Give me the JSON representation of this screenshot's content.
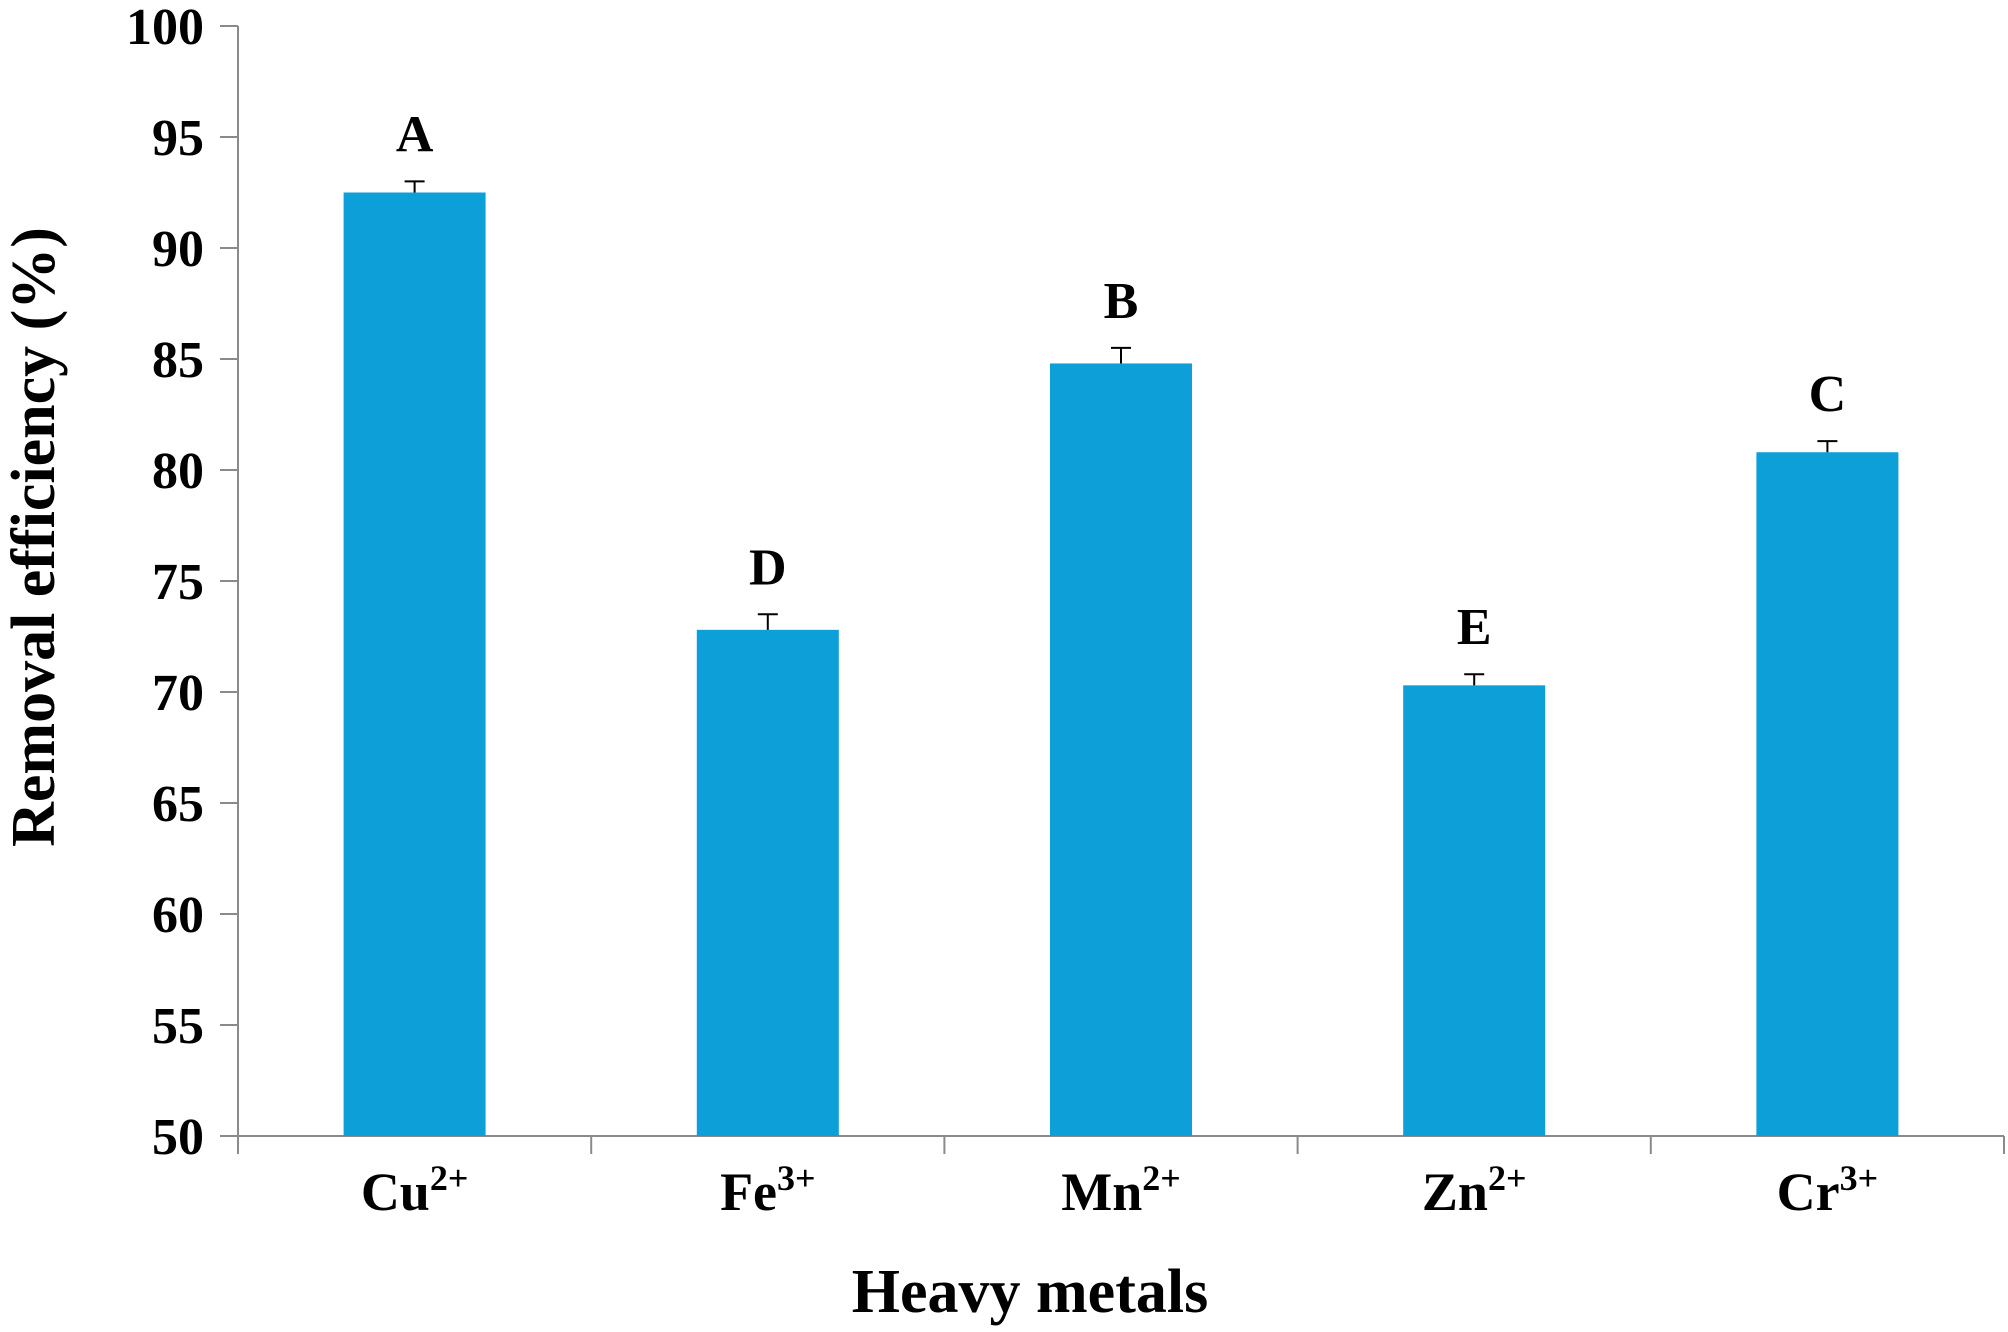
{
  "chart_data": {
    "type": "bar",
    "title": "",
    "xlabel": "Heavy metals",
    "ylabel": "Removal efficiency (%)",
    "ylim": [
      50,
      100
    ],
    "yticks": [
      50,
      55,
      60,
      65,
      70,
      75,
      80,
      85,
      90,
      95,
      100
    ],
    "grid": false,
    "legend": "none",
    "bar_color": "#0c9fd8",
    "categories": [
      {
        "base": "Cu",
        "sup": "2+"
      },
      {
        "base": "Fe",
        "sup": "3+"
      },
      {
        "base": "Mn",
        "sup": "2+"
      },
      {
        "base": "Zn",
        "sup": "2+"
      },
      {
        "base": "Cr",
        "sup": "3+"
      }
    ],
    "values": [
      92.5,
      72.8,
      84.8,
      70.3,
      80.8
    ],
    "errors": [
      0.5,
      0.7,
      0.7,
      0.5,
      0.5
    ],
    "significance_labels": [
      "A",
      "D",
      "B",
      "E",
      "C"
    ]
  }
}
